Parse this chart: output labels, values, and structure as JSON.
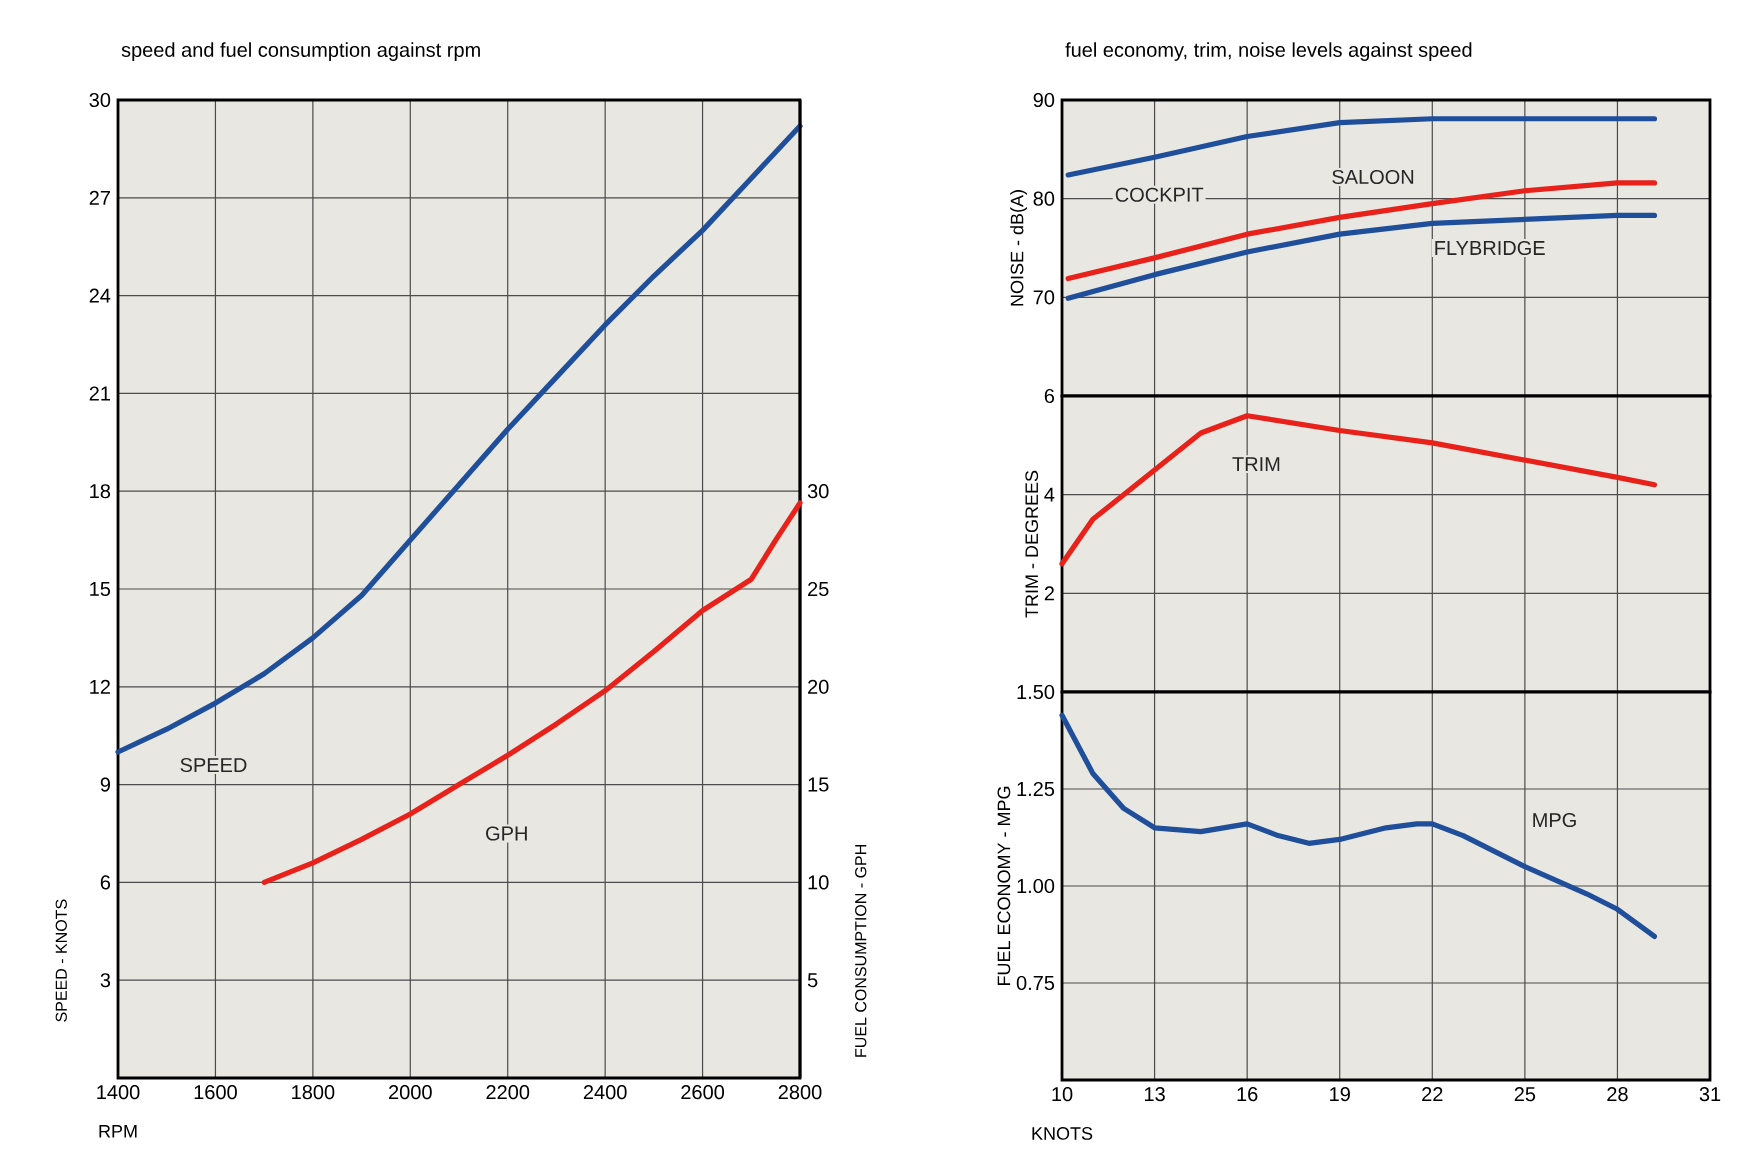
{
  "chart_data": [
    {
      "type": "line",
      "title": "speed and fuel consumption against rpm",
      "xlabel": "RPM",
      "ylabel": "SPEED - KNOTS",
      "y2label": "FUEL CONSUMPTION - GPH",
      "xlim": [
        1400,
        2800
      ],
      "xticks": [
        1400,
        1600,
        1800,
        2000,
        2200,
        2400,
        2600,
        2800
      ],
      "ylim": [
        0,
        30
      ],
      "yticks": [
        3,
        6,
        9,
        12,
        15,
        18,
        21,
        24,
        27,
        30
      ],
      "y2lim": [
        0,
        50
      ],
      "y2ticks": [
        5,
        10,
        15,
        20,
        25,
        30
      ],
      "grid": true,
      "series": [
        {
          "name": "SPEED",
          "color": "#1f4e9a",
          "x": [
            1400,
            1500,
            1600,
            1700,
            1800,
            1900,
            2000,
            2100,
            2200,
            2300,
            2400,
            2500,
            2600,
            2700,
            2800
          ],
          "values": [
            10.0,
            10.7,
            11.5,
            12.4,
            13.5,
            14.8,
            16.5,
            18.2,
            19.9,
            21.5,
            23.1,
            24.6,
            26.0,
            27.6,
            29.2
          ]
        },
        {
          "name": "GPH",
          "color": "#e8221b",
          "axis": "y2",
          "x": [
            1700,
            1800,
            1900,
            2000,
            2100,
            2200,
            2300,
            2400,
            2500,
            2600,
            2700,
            2750,
            2800
          ],
          "values": [
            10.0,
            11.0,
            12.2,
            13.5,
            15.0,
            16.5,
            18.1,
            19.8,
            21.8,
            23.9,
            25.5,
            27.5,
            29.4
          ]
        }
      ]
    },
    {
      "type": "line",
      "title": "fuel economy, trim, noise levels against speed",
      "ylabel": "NOISE - dB(A)",
      "xlim": [
        10,
        31
      ],
      "xticks": [
        10,
        13,
        16,
        19,
        22,
        25,
        28,
        31
      ],
      "ylim": [
        60,
        90
      ],
      "yticks": [
        70,
        80,
        90
      ],
      "grid": true,
      "tick_labels": "y",
      "series": [
        {
          "name": "COCKPIT",
          "color": "#1f4e9a",
          "x": [
            10.2,
            13,
            16,
            19,
            22,
            25,
            28,
            29.2
          ],
          "values": [
            82.4,
            84.2,
            86.3,
            87.7,
            88.1,
            88.1,
            88.1,
            88.1
          ]
        },
        {
          "name": "SALOON",
          "color": "#e8221b",
          "x": [
            10.2,
            13,
            16,
            19,
            22,
            25,
            28,
            29.2
          ],
          "values": [
            71.9,
            74.0,
            76.4,
            78.1,
            79.5,
            80.8,
            81.6,
            81.6
          ]
        },
        {
          "name": "FLYBRIDGE",
          "color": "#1f4e9a",
          "x": [
            10.2,
            13,
            16,
            19,
            22,
            25,
            28,
            29.2
          ],
          "values": [
            69.9,
            72.3,
            74.6,
            76.4,
            77.5,
            77.9,
            78.3,
            78.3
          ]
        }
      ]
    },
    {
      "type": "line",
      "ylabel": "TRIM - DEGREES",
      "xlim": [
        10,
        31
      ],
      "xticks": [
        10,
        13,
        16,
        19,
        22,
        25,
        28,
        31
      ],
      "ylim": [
        0,
        6
      ],
      "yticks": [
        2,
        4,
        6
      ],
      "grid": true,
      "tick_labels": "y",
      "series": [
        {
          "name": "TRIM",
          "color": "#e8221b",
          "x": [
            10,
            11,
            13,
            14.5,
            16,
            19,
            22,
            25,
            28,
            29.2
          ],
          "values": [
            2.6,
            3.5,
            4.5,
            5.25,
            5.6,
            5.3,
            5.05,
            4.7,
            4.35,
            4.2
          ]
        }
      ]
    },
    {
      "type": "line",
      "xlabel": "KNOTS",
      "ylabel": "FUEL ECONOMY - MPG",
      "xlim": [
        10,
        31
      ],
      "xticks": [
        10,
        13,
        16,
        19,
        22,
        25,
        28,
        31
      ],
      "ylim": [
        0.5,
        1.5
      ],
      "yticks": [
        0.75,
        {
          "value": 1.0,
          "label": "1.00"
        },
        1.25,
        {
          "value": 1.5,
          "label": "1.50"
        }
      ],
      "grid": true,
      "series": [
        {
          "name": "MPG",
          "color": "#1f4e9a",
          "x": [
            10,
            11,
            12,
            13,
            14.5,
            16,
            17,
            18,
            19,
            20.5,
            21.5,
            22,
            23,
            25,
            27,
            28,
            29.2
          ],
          "values": [
            1.44,
            1.29,
            1.2,
            1.15,
            1.14,
            1.16,
            1.13,
            1.11,
            1.12,
            1.15,
            1.16,
            1.16,
            1.13,
            1.05,
            0.98,
            0.94,
            0.87
          ]
        }
      ]
    }
  ]
}
